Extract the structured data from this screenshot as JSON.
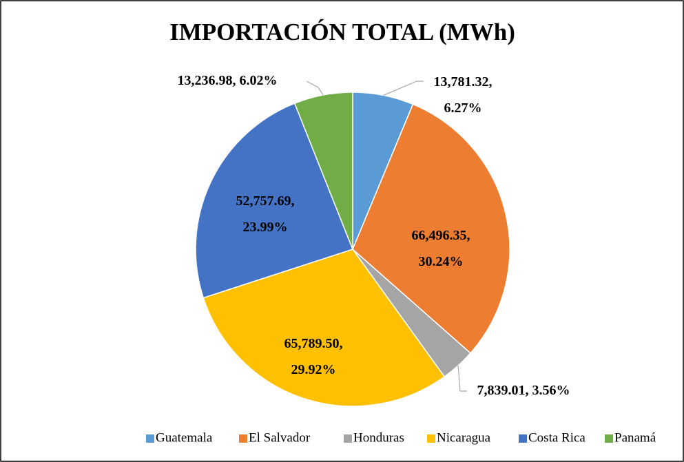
{
  "chart_data": {
    "type": "pie",
    "title": "IMPORTACIÓN TOTAL (MWh)",
    "categories": [
      "Guatemala",
      "El Salvador",
      "Honduras",
      "Nicaragua",
      "Costa Rica",
      "Panamá"
    ],
    "values": [
      13781.32,
      66496.35,
      7839.01,
      65789.5,
      52757.69,
      13236.98
    ],
    "value_labels": [
      [
        "13,781.32,",
        "6.27%"
      ],
      [
        "66,496.35,",
        "30.24%"
      ],
      [
        "7,839.01, 3.56%"
      ],
      [
        "65,789.50,",
        "29.92%"
      ],
      [
        "52,757.69,",
        "23.99%"
      ],
      [
        "13,236.98, 6.02%"
      ]
    ],
    "colors": [
      "#5b9bd5",
      "#ed7d31",
      "#a5a5a5",
      "#ffc000",
      "#4472c4",
      "#70ad47"
    ],
    "legend": "bottom"
  }
}
